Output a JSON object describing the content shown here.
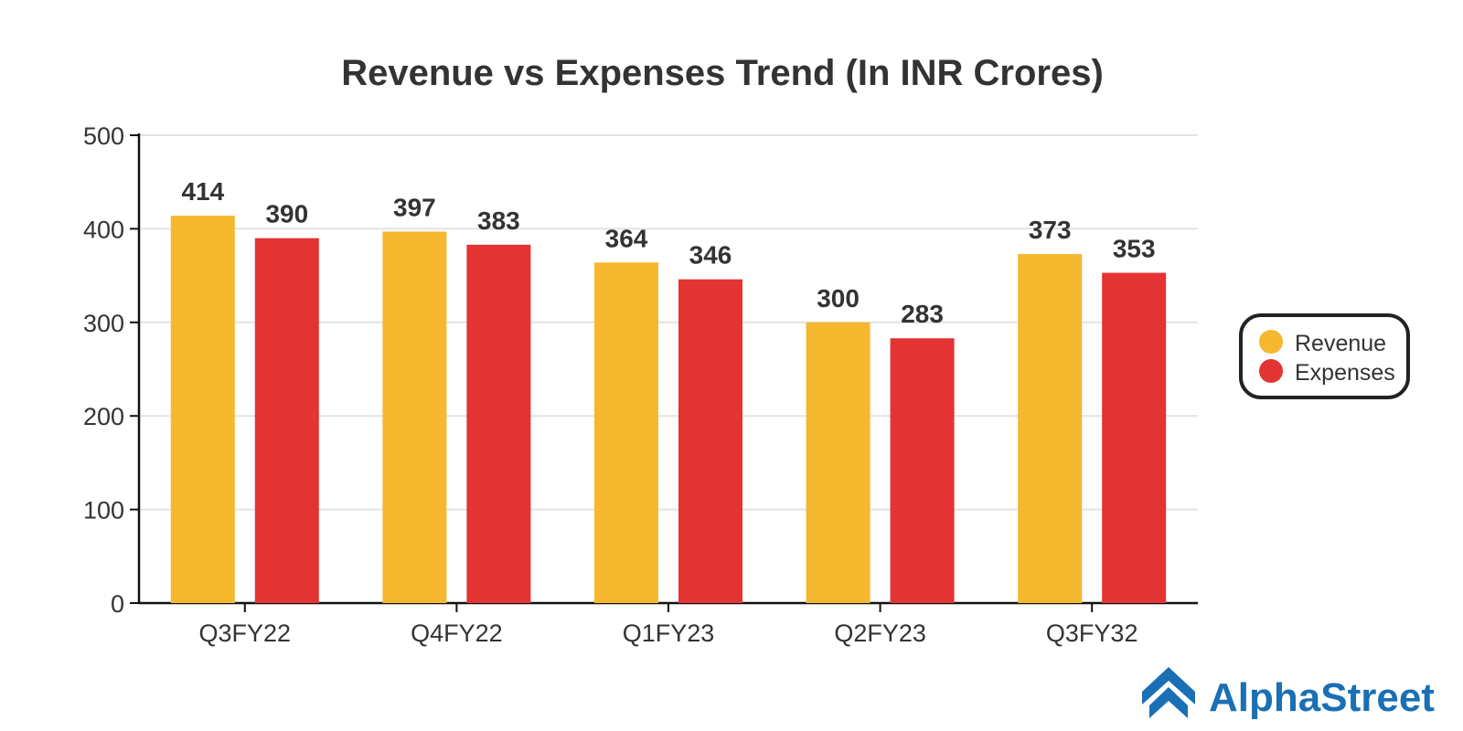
{
  "chart_data": {
    "type": "bar",
    "title": "Revenue vs Expenses Trend (In INR Crores)",
    "xlabel": "",
    "ylabel": "",
    "categories": [
      "Q3FY22",
      "Q4FY22",
      "Q1FY23",
      "Q2FY23",
      "Q3FY32"
    ],
    "series": [
      {
        "name": "Revenue",
        "values": [
          414,
          397,
          364,
          300,
          373
        ],
        "color": "#F5B82E"
      },
      {
        "name": "Expenses",
        "values": [
          390,
          383,
          346,
          283,
          353
        ],
        "color": "#E33333"
      }
    ],
    "ylim": [
      0,
      500
    ],
    "yticks": [
      0,
      100,
      200,
      300,
      400,
      500
    ],
    "grid": true,
    "legend_position": "right"
  },
  "brand": {
    "name": "AlphaStreet",
    "color": "#1A6FB5",
    "icon": "alphastreet-logo-icon"
  }
}
